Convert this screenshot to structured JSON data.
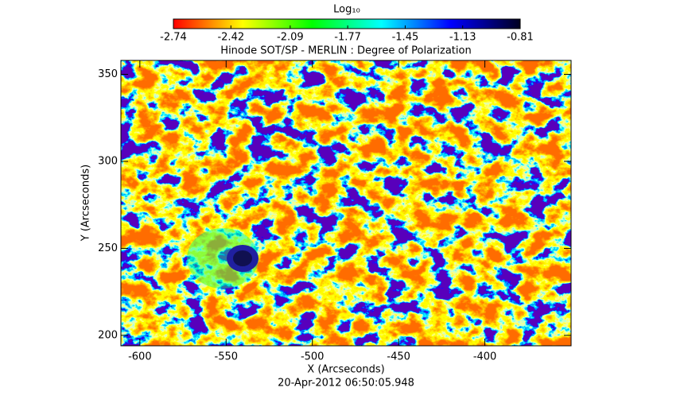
{
  "chart_data": {
    "type": "heatmap",
    "title": "Hinode SOT/SP - MERLIN : Degree of Polarization",
    "x_label": "X (Arcseconds)",
    "y_label": "Y (Arcseconds)",
    "date": "20-Apr-2012 06:50:05.948",
    "colorbar_label": "Log₁₀",
    "colorbar_lim": [
      -2.74,
      -0.81
    ],
    "colorbar_ticks": [
      -2.74,
      -2.42,
      -2.09,
      -1.77,
      -1.45,
      -1.13,
      -0.81
    ],
    "colormap": [
      "#ff0000",
      "#ffff00",
      "#00ff00",
      "#00ffff",
      "#0000ff",
      "#000020"
    ],
    "xlim": [
      -611,
      -350
    ],
    "xticks": [
      -600,
      -550,
      -500,
      -450,
      -400
    ],
    "ylim": [
      194,
      358
    ],
    "yticks": [
      200,
      250,
      300,
      350
    ]
  }
}
